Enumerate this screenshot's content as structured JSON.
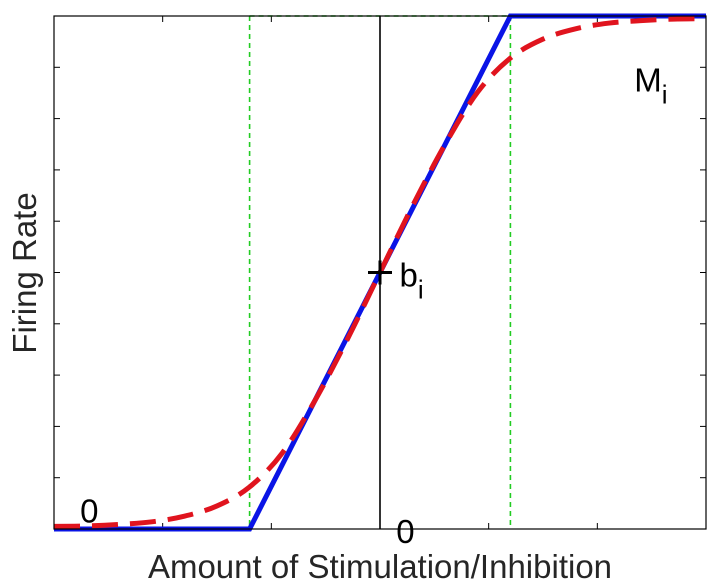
{
  "chart_data": {
    "type": "line",
    "xlabel": "Amount of Stimulation/Inhibition",
    "ylabel": "Firing Rate",
    "xlim": [
      -1,
      1
    ],
    "ylim": [
      0,
      1
    ],
    "grid": false,
    "colors": {
      "piecewise": "#0a14e6",
      "sigmoid": "#e0141e",
      "bounds": "#22cc22",
      "axis": "#000000"
    },
    "series": [
      {
        "x": [
          -1,
          -0.4,
          0.4,
          1
        ],
        "y": [
          0,
          0,
          1,
          1
        ],
        "style": "solid"
      },
      {
        "x": [
          -1,
          -0.9,
          -0.8,
          -0.7,
          -0.6,
          -0.5,
          -0.4,
          -0.3,
          -0.2,
          -0.1,
          0,
          0.1,
          0.2,
          0.3,
          0.4,
          0.5,
          0.6,
          0.7,
          0.8,
          0.9,
          1
        ],
        "y": [
          0.005,
          0.006,
          0.009,
          0.014,
          0.025,
          0.045,
          0.082,
          0.148,
          0.25,
          0.37,
          0.5,
          0.63,
          0.75,
          0.852,
          0.918,
          0.955,
          0.975,
          0.986,
          0.991,
          0.994,
          0.995
        ],
        "style": "dashed"
      }
    ],
    "reference_lines": [
      {
        "axis": "x",
        "value": -0.4,
        "style": "dashed"
      },
      {
        "axis": "x",
        "value": 0.4,
        "style": "dashed"
      },
      {
        "axis": "y",
        "value": 1,
        "from": -0.4,
        "to": 0.4,
        "style": "dashed"
      },
      {
        "axis": "x",
        "value": 0,
        "style": "solid"
      }
    ],
    "annotations": [
      {
        "text": "0",
        "x": -0.92,
        "y": 0.04
      },
      {
        "text": "0",
        "x": 0.05,
        "y": 0.0
      },
      {
        "text": "b",
        "sub": "i",
        "x": 0.06,
        "y": 0.5,
        "marker": "cross"
      },
      {
        "text": "M",
        "sub": "i",
        "x": 0.78,
        "y": 0.88
      }
    ]
  }
}
